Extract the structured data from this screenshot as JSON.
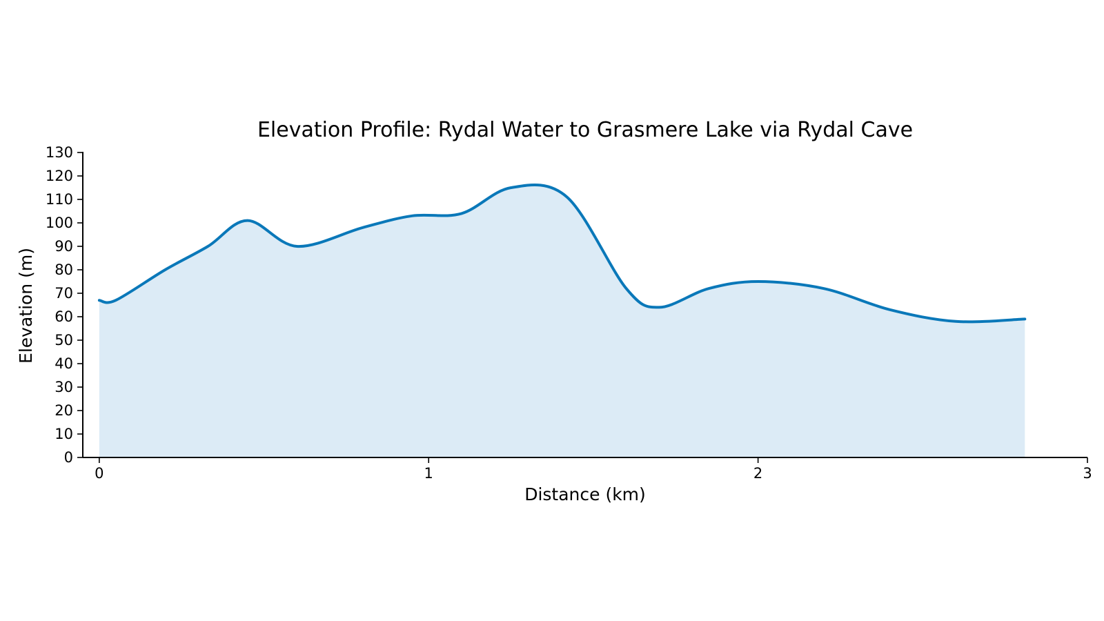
{
  "chart_data": {
    "type": "area",
    "title": "Elevation Profile: Rydal Water to Grasmere Lake via Rydal Cave",
    "xlabel": "Distance (km)",
    "ylabel": "Elevation (m)",
    "xlim": [
      -0.05,
      3
    ],
    "ylim": [
      0,
      130
    ],
    "x_ticks": [
      0,
      1,
      2,
      3
    ],
    "y_ticks": [
      0,
      10,
      20,
      30,
      40,
      50,
      60,
      70,
      80,
      90,
      100,
      110,
      120,
      130
    ],
    "grid": false,
    "series": [
      {
        "x": [
          0,
          0.05,
          0.2,
          0.33,
          0.45,
          0.6,
          0.8,
          0.95,
          1.1,
          1.25,
          1.42,
          1.6,
          1.7,
          1.85,
          2.0,
          2.2,
          2.4,
          2.6,
          2.81
        ],
        "y": [
          67,
          67,
          80,
          90,
          101,
          90,
          98,
          103,
          104,
          115,
          111,
          72,
          64,
          72,
          75,
          72,
          63,
          58,
          59
        ]
      }
    ],
    "colors": {
      "line": "#0a78b9",
      "fill": "#dcebf6",
      "axis": "#000000"
    }
  }
}
